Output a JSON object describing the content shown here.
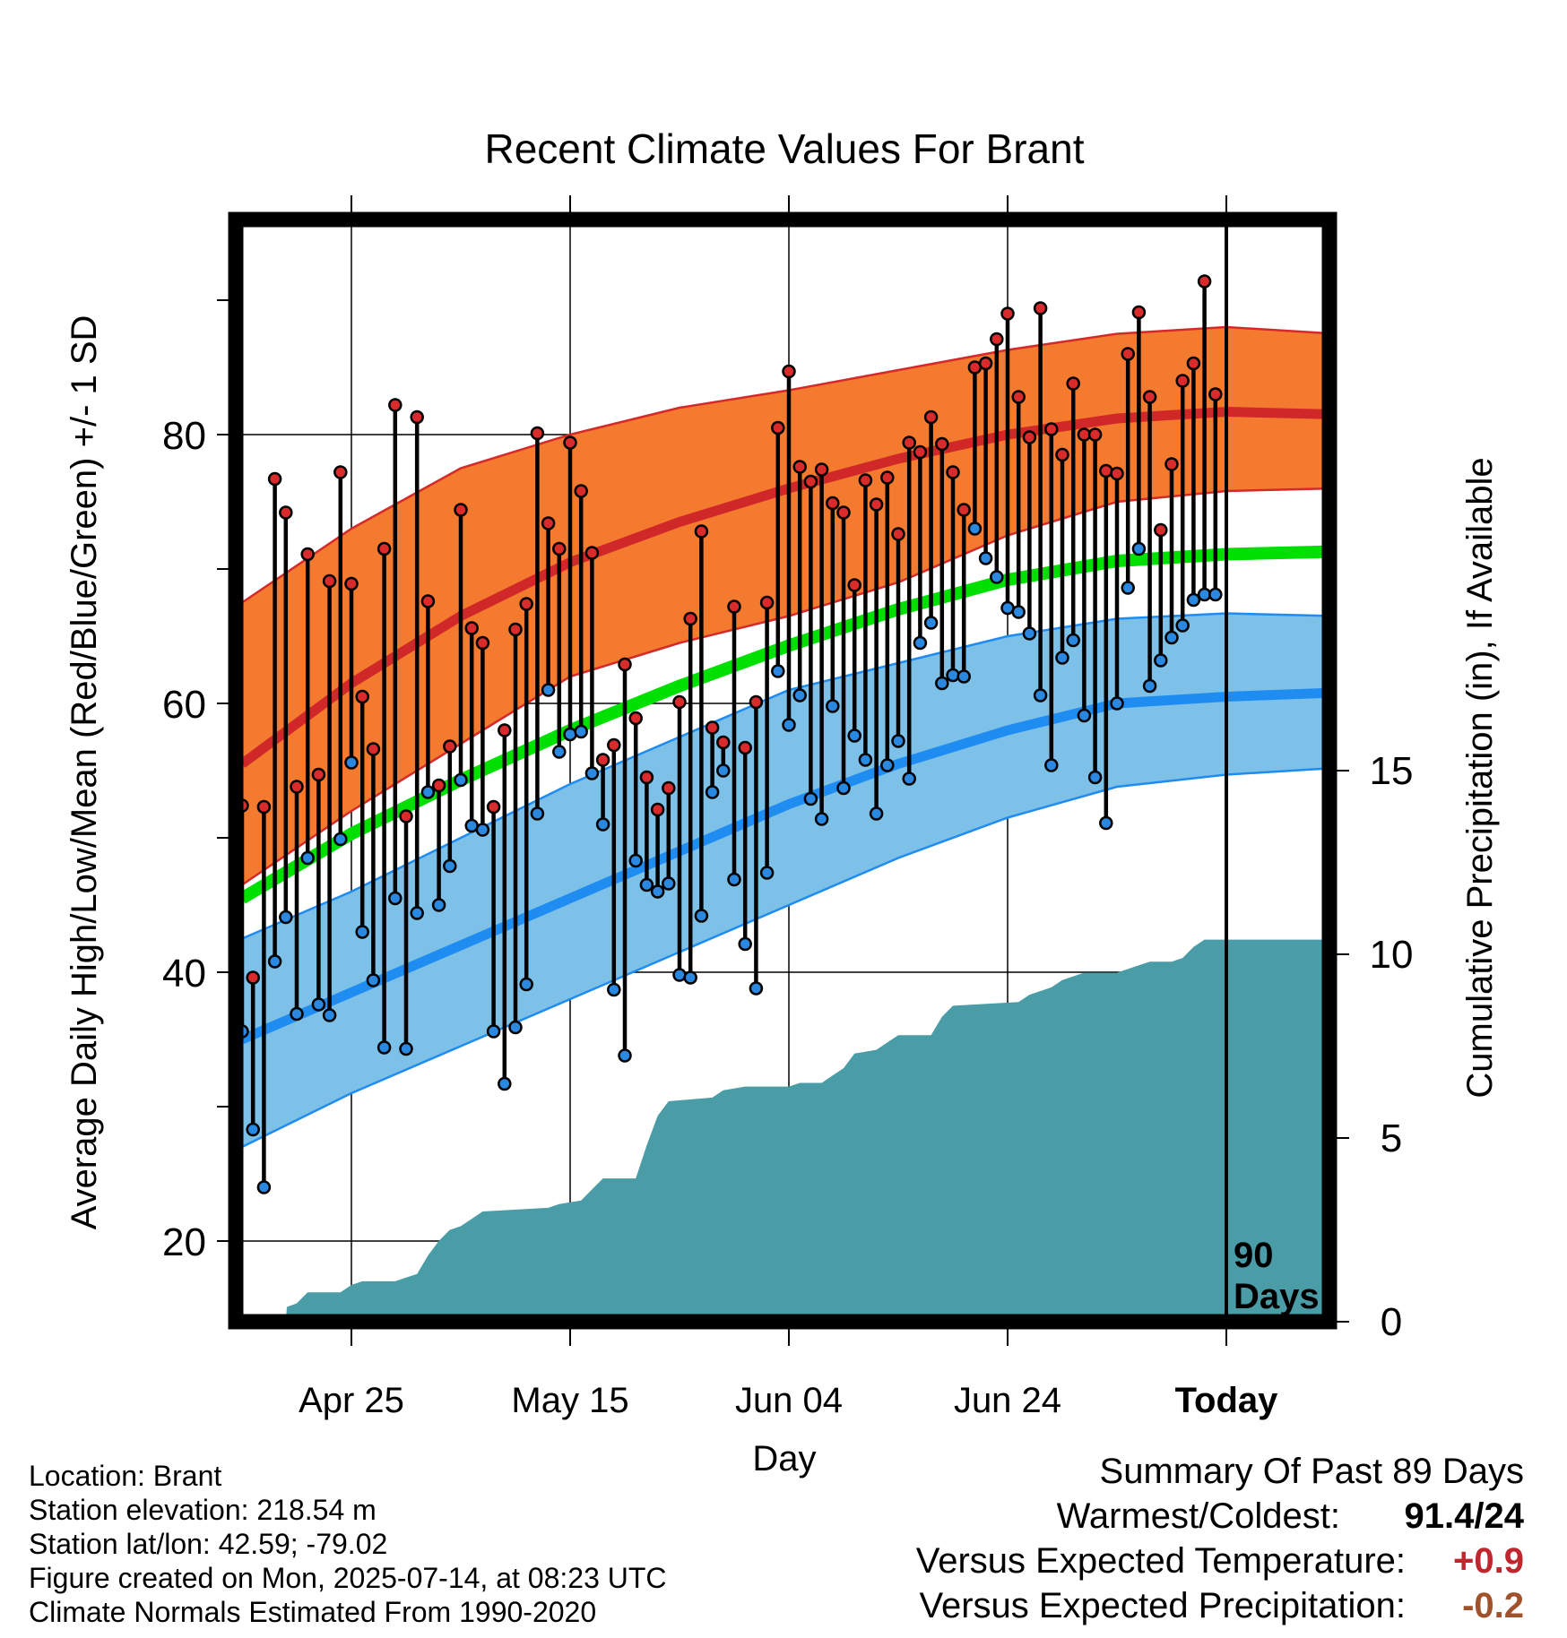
{
  "chart_data": {
    "type": "line",
    "title": "Recent Climate Values For Brant",
    "xlabel": "Day",
    "ylabel": "Average Daily High/Low/Mean (Red/Blue/Green) +/- 1 SD",
    "y2label": "Cumulative Precipitation (in), If Available",
    "x_tick_labels": [
      "Apr 25",
      "May 15",
      "Jun 04",
      "Jun 24",
      "Today"
    ],
    "x_tick_day_index": [
      10,
      30,
      50,
      70,
      90
    ],
    "ylim": [
      14,
      96
    ],
    "y_ticks": [
      20,
      40,
      60,
      80
    ],
    "y2lim": [
      0,
      30
    ],
    "y2_ticks": [
      0,
      5,
      10,
      15
    ],
    "grid": true,
    "today_marker_label": "90\nDays",
    "normal_high": [
      {
        "day": 0,
        "mean": 55.5,
        "sd_low": 46.5,
        "sd_high": 67.5
      },
      {
        "day": 10,
        "mean": 61.5,
        "sd_low": 52,
        "sd_high": 73
      },
      {
        "day": 20,
        "mean": 66.5,
        "sd_low": 57,
        "sd_high": 77.5
      },
      {
        "day": 30,
        "mean": 70.5,
        "sd_low": 62,
        "sd_high": 80
      },
      {
        "day": 40,
        "mean": 73.5,
        "sd_low": 64.5,
        "sd_high": 82
      },
      {
        "day": 50,
        "mean": 76,
        "sd_low": 66.5,
        "sd_high": 83.3
      },
      {
        "day": 60,
        "mean": 78.2,
        "sd_low": 69,
        "sd_high": 84.8
      },
      {
        "day": 70,
        "mean": 80,
        "sd_low": 72.5,
        "sd_high": 86.3
      },
      {
        "day": 80,
        "mean": 81.2,
        "sd_low": 75,
        "sd_high": 87.5
      },
      {
        "day": 90,
        "mean": 81.7,
        "sd_low": 75.8,
        "sd_high": 88
      },
      {
        "day": 100,
        "mean": 81.5,
        "sd_low": 76,
        "sd_high": 87.5
      }
    ],
    "normal_low": [
      {
        "day": 0,
        "mean": 35,
        "sd_low": 27,
        "sd_high": 42.5
      },
      {
        "day": 10,
        "mean": 38.5,
        "sd_low": 31,
        "sd_high": 46
      },
      {
        "day": 20,
        "mean": 42,
        "sd_low": 34.5,
        "sd_high": 50
      },
      {
        "day": 30,
        "mean": 45.5,
        "sd_low": 38,
        "sd_high": 54
      },
      {
        "day": 40,
        "mean": 49,
        "sd_low": 41.5,
        "sd_high": 57.5
      },
      {
        "day": 50,
        "mean": 52.5,
        "sd_low": 45,
        "sd_high": 61
      },
      {
        "day": 60,
        "mean": 55.5,
        "sd_low": 48.5,
        "sd_high": 63
      },
      {
        "day": 70,
        "mean": 58,
        "sd_low": 51.5,
        "sd_high": 65
      },
      {
        "day": 80,
        "mean": 60,
        "sd_low": 53.8,
        "sd_high": 66.3
      },
      {
        "day": 90,
        "mean": 60.5,
        "sd_low": 54.7,
        "sd_high": 66.7
      },
      {
        "day": 100,
        "mean": 60.8,
        "sd_low": 55.2,
        "sd_high": 66.5
      }
    ],
    "normal_mean": [
      {
        "day": 0,
        "value": 45.5
      },
      {
        "day": 10,
        "value": 50.3
      },
      {
        "day": 20,
        "value": 54.3
      },
      {
        "day": 30,
        "value": 58
      },
      {
        "day": 40,
        "value": 61.3
      },
      {
        "day": 50,
        "value": 64.3
      },
      {
        "day": 60,
        "value": 67
      },
      {
        "day": 70,
        "value": 69.2
      },
      {
        "day": 80,
        "value": 70.6
      },
      {
        "day": 90,
        "value": 71.1
      },
      {
        "day": 100,
        "value": 71.3
      }
    ],
    "daily_high": [
      52.4,
      39.6,
      52.3,
      76.7,
      74.2,
      53.8,
      71.1,
      54.7,
      69.1,
      77.2,
      68.9,
      60.5,
      56.6,
      71.5,
      82.2,
      51.6,
      81.3,
      67.6,
      53.9,
      56.8,
      74.4,
      65.6,
      64.5,
      52.3,
      58,
      65.5,
      67.4,
      80.1,
      73.4,
      71.5,
      79.4,
      75.8,
      71.2,
      55.8,
      56.9,
      62.9,
      58.9,
      54.5,
      52.1,
      53.7,
      60.1,
      66.3,
      72.8,
      58.2,
      57.1,
      67.2,
      56.7,
      60.1,
      67.5,
      80.5,
      84.7,
      77.6,
      76.5,
      77.4,
      74.9,
      74.2,
      68.8,
      76.6,
      74.8,
      76.8,
      72.6,
      79.4,
      78.7,
      81.3,
      79.3,
      77.2,
      74.4,
      85,
      85.3,
      87.1,
      89,
      82.8,
      79.8,
      89.4,
      80.4,
      78.5,
      83.8,
      80,
      80,
      77.3,
      77.1,
      86,
      89.1,
      82.8,
      72.9,
      77.8,
      84,
      85.3,
      91.4,
      83
    ],
    "daily_low": [
      35.6,
      28.3,
      24,
      40.8,
      44.1,
      36.9,
      48.5,
      37.6,
      36.8,
      49.9,
      55.6,
      43,
      39.4,
      34.4,
      45.5,
      34.3,
      44.4,
      53.4,
      45,
      47.9,
      54.3,
      50.9,
      50.6,
      35.6,
      31.7,
      35.9,
      39.1,
      51.8,
      61,
      56.4,
      57.7,
      57.9,
      54.8,
      51,
      38.7,
      33.8,
      48.3,
      46.5,
      46,
      46.6,
      39.8,
      39.6,
      44.2,
      53.4,
      55,
      46.9,
      42.1,
      38.8,
      47.4,
      62.4,
      58.4,
      60.6,
      52.9,
      51.4,
      59.8,
      53.7,
      57.6,
      55.8,
      51.8,
      55.4,
      57.2,
      54.4,
      64.5,
      66,
      61.5,
      62.1,
      62,
      73,
      70.8,
      69.4,
      67.1,
      66.8,
      65.2,
      60.6,
      55.4,
      63.4,
      64.7,
      59.1,
      54.5,
      51.1,
      60,
      68.6,
      71.5,
      61.3,
      63.2,
      64.9,
      65.8,
      67.7,
      68.1,
      68.1
    ],
    "cumulative_precip": [
      {
        "day": 0,
        "value": 0
      },
      {
        "day": 4,
        "value": 0
      },
      {
        "day": 4.1,
        "value": 0.4
      },
      {
        "day": 5,
        "value": 0.5
      },
      {
        "day": 6,
        "value": 0.8
      },
      {
        "day": 9,
        "value": 0.8
      },
      {
        "day": 10,
        "value": 1.0
      },
      {
        "day": 11,
        "value": 1.1
      },
      {
        "day": 14,
        "value": 1.1
      },
      {
        "day": 15,
        "value": 1.2
      },
      {
        "day": 16,
        "value": 1.3
      },
      {
        "day": 17,
        "value": 1.8
      },
      {
        "day": 18,
        "value": 2.2
      },
      {
        "day": 19,
        "value": 2.5
      },
      {
        "day": 20,
        "value": 2.6
      },
      {
        "day": 21,
        "value": 2.8
      },
      {
        "day": 22,
        "value": 3.0
      },
      {
        "day": 28,
        "value": 3.1
      },
      {
        "day": 29,
        "value": 3.2
      },
      {
        "day": 31,
        "value": 3.3
      },
      {
        "day": 32,
        "value": 3.6
      },
      {
        "day": 33,
        "value": 3.9
      },
      {
        "day": 36,
        "value": 3.9
      },
      {
        "day": 37,
        "value": 4.8
      },
      {
        "day": 38,
        "value": 5.6
      },
      {
        "day": 39,
        "value": 6.0
      },
      {
        "day": 43,
        "value": 6.1
      },
      {
        "day": 44,
        "value": 6.3
      },
      {
        "day": 46,
        "value": 6.4
      },
      {
        "day": 50,
        "value": 6.4
      },
      {
        "day": 51,
        "value": 6.5
      },
      {
        "day": 53,
        "value": 6.5
      },
      {
        "day": 54,
        "value": 6.7
      },
      {
        "day": 55,
        "value": 6.9
      },
      {
        "day": 56,
        "value": 7.3
      },
      {
        "day": 58,
        "value": 7.4
      },
      {
        "day": 59,
        "value": 7.6
      },
      {
        "day": 60,
        "value": 7.8
      },
      {
        "day": 63,
        "value": 7.8
      },
      {
        "day": 64,
        "value": 8.3
      },
      {
        "day": 65,
        "value": 8.6
      },
      {
        "day": 71,
        "value": 8.7
      },
      {
        "day": 72,
        "value": 8.9
      },
      {
        "day": 74,
        "value": 9.1
      },
      {
        "day": 75,
        "value": 9.3
      },
      {
        "day": 77,
        "value": 9.5
      },
      {
        "day": 80,
        "value": 9.5
      },
      {
        "day": 81,
        "value": 9.6
      },
      {
        "day": 82,
        "value": 9.7
      },
      {
        "day": 83,
        "value": 9.8
      },
      {
        "day": 85,
        "value": 9.8
      },
      {
        "day": 86,
        "value": 9.9
      },
      {
        "day": 87,
        "value": 10.2
      },
      {
        "day": 88,
        "value": 10.4
      },
      {
        "day": 100,
        "value": 10.4
      }
    ]
  },
  "meta": {
    "location": "Location: Brant",
    "elevation": "Station elevation: 218.54 m",
    "latlon": "Station lat/lon: 42.59; -79.02",
    "created": "Figure created on Mon, 2025-07-14, at 08:23 UTC",
    "normals": "Climate Normals Estimated From 1990-2020"
  },
  "summary": {
    "title": "Summary Of Past 89 Days",
    "warmest_label": "Warmest/Coldest:",
    "warmest_value": "91.4/24",
    "temp_label": "Versus Expected Temperature:",
    "temp_value": "+0.9",
    "temp_color": "#c0262e",
    "precip_label": "Versus Expected Precipitation:",
    "precip_value": "-0.2",
    "precip_color": "#a0522d"
  },
  "colors": {
    "high_band": "#f47a2f",
    "high_line": "#d02828",
    "high_band_edge": "#d42a2a",
    "low_band": "#7dc0e8",
    "low_line": "#1e8cf0",
    "low_band_edge": "#1e8cf0",
    "mean_line": "#00e000",
    "precip_fill": "#4a9ca6",
    "high_dot": "#d92b2b",
    "low_dot": "#2a88e0"
  }
}
